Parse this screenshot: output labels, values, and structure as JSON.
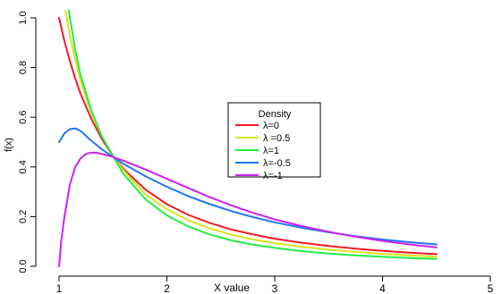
{
  "chart_data": {
    "type": "line",
    "title": "",
    "xlabel": "X value",
    "ylabel": "f(x)",
    "xlim": [
      1,
      5
    ],
    "ylim": [
      0,
      1
    ],
    "x_ticks": [
      "1",
      "2",
      "3",
      "4",
      "5"
    ],
    "y_ticks": [
      "0.0",
      "0.2",
      "0.4",
      "0.6",
      "0.8",
      "1.0"
    ],
    "grid": false,
    "legend_title": "Density",
    "legend_position": "center",
    "series": [
      {
        "name": "λ=0",
        "color": "#ee1c24",
        "x": [
          1.0,
          1.05,
          1.1,
          1.15,
          1.2,
          1.3,
          1.4,
          1.5,
          1.6,
          1.8,
          2.0,
          2.2,
          2.4,
          2.6,
          2.8,
          3.0,
          3.25,
          3.5,
          3.75,
          4.0,
          4.25,
          4.5
        ],
        "y": [
          1.0,
          0.907,
          0.826,
          0.756,
          0.694,
          0.592,
          0.51,
          0.444,
          0.391,
          0.309,
          0.25,
          0.207,
          0.174,
          0.148,
          0.128,
          0.111,
          0.095,
          0.082,
          0.071,
          0.062,
          0.055,
          0.049
        ]
      },
      {
        "name": "λ =0.5",
        "color": "#d9e21b",
        "x": [
          1.06,
          1.1,
          1.15,
          1.2,
          1.3,
          1.4,
          1.5,
          1.6,
          1.8,
          2.0,
          2.2,
          2.4,
          2.6,
          2.8,
          3.0,
          3.25,
          3.5,
          3.75,
          4.0,
          4.25,
          4.5
        ],
        "y": [
          1.03,
          0.93,
          0.83,
          0.745,
          0.615,
          0.52,
          0.445,
          0.385,
          0.29,
          0.23,
          0.185,
          0.152,
          0.127,
          0.108,
          0.093,
          0.078,
          0.067,
          0.058,
          0.05,
          0.044,
          0.039
        ]
      },
      {
        "name": "λ=1",
        "color": "#22ee44",
        "x": [
          1.09,
          1.12,
          1.15,
          1.2,
          1.3,
          1.4,
          1.5,
          1.6,
          1.8,
          2.0,
          2.2,
          2.4,
          2.6,
          2.8,
          3.0,
          3.25,
          3.5,
          3.75,
          4.0,
          4.25,
          4.5
        ],
        "y": [
          1.03,
          0.95,
          0.87,
          0.77,
          0.625,
          0.52,
          0.445,
          0.37,
          0.27,
          0.205,
          0.16,
          0.128,
          0.104,
          0.087,
          0.074,
          0.061,
          0.051,
          0.044,
          0.038,
          0.033,
          0.03
        ]
      },
      {
        "name": "λ=-0.5",
        "color": "#2277ee",
        "x": [
          1.0,
          1.05,
          1.1,
          1.15,
          1.2,
          1.25,
          1.3,
          1.4,
          1.5,
          1.6,
          1.8,
          2.0,
          2.2,
          2.4,
          2.6,
          2.8,
          3.0,
          3.25,
          3.5,
          3.75,
          4.0,
          4.25,
          4.5
        ],
        "y": [
          0.5,
          0.535,
          0.552,
          0.555,
          0.545,
          0.525,
          0.505,
          0.47,
          0.44,
          0.412,
          0.363,
          0.32,
          0.282,
          0.25,
          0.222,
          0.198,
          0.177,
          0.155,
          0.137,
          0.121,
          0.108,
          0.097,
          0.088
        ]
      },
      {
        "name": "λ=-1",
        "color": "#cc22ee",
        "x": [
          1.0,
          1.02,
          1.05,
          1.1,
          1.15,
          1.2,
          1.25,
          1.3,
          1.35,
          1.4,
          1.5,
          1.6,
          1.8,
          2.0,
          2.2,
          2.4,
          2.6,
          2.8,
          3.0,
          3.25,
          3.5,
          3.75,
          4.0,
          4.25,
          4.5
        ],
        "y": [
          0.0,
          0.1,
          0.2,
          0.33,
          0.4,
          0.435,
          0.452,
          0.458,
          0.457,
          0.452,
          0.44,
          0.425,
          0.39,
          0.352,
          0.315,
          0.278,
          0.245,
          0.215,
          0.189,
          0.162,
          0.139,
          0.119,
          0.102,
          0.088,
          0.076
        ]
      }
    ]
  }
}
